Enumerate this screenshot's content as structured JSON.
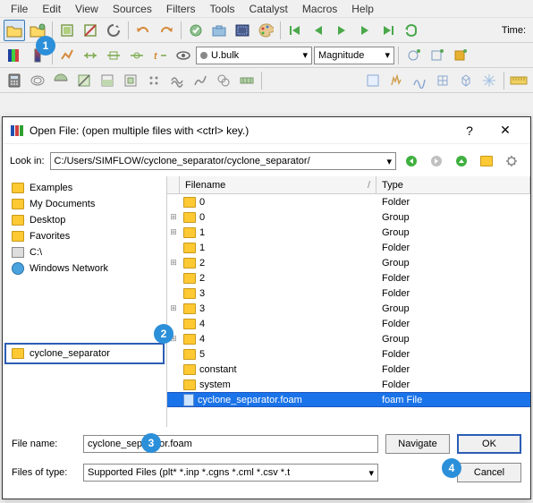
{
  "menu": {
    "items": [
      "File",
      "Edit",
      "View",
      "Sources",
      "Filters",
      "Tools",
      "Catalyst",
      "Macros",
      "Help"
    ]
  },
  "toolbar1": {
    "time_label": "Time:",
    "icons": [
      "open",
      "open-recent",
      "sep",
      "connect",
      "disconnect",
      "refresh",
      "sep",
      "undo",
      "redo",
      "sep",
      "apply",
      "camera",
      "frame",
      "palette",
      "sep",
      "first",
      "prev-step",
      "play",
      "next-step",
      "last",
      "loop"
    ]
  },
  "toolbar2": {
    "field_combo": "U.bulk",
    "repr_combo": "Magnitude"
  },
  "dialog": {
    "title": "Open File:  (open multiple files with <ctrl> key.)",
    "look_label": "Look in:",
    "look_path": "C:/Users/SIMFLOW/cyclone_separator/cyclone_separator/",
    "shortcuts": [
      {
        "icon": "folder",
        "label": "Examples"
      },
      {
        "icon": "folder",
        "label": "My Documents"
      },
      {
        "icon": "folder",
        "label": "Desktop"
      },
      {
        "icon": "folder",
        "label": "Favorites"
      },
      {
        "icon": "drive",
        "label": "C:\\"
      },
      {
        "icon": "globe",
        "label": "Windows Network"
      }
    ],
    "selected_shortcut": "cyclone_separator",
    "file_columns": {
      "name": "Filename",
      "type": "Type"
    },
    "files": [
      {
        "tree": "",
        "name": "0",
        "type": "Folder",
        "icon": "folder"
      },
      {
        "tree": "+",
        "name": "0",
        "type": "Group",
        "icon": "folder"
      },
      {
        "tree": "+",
        "name": "1",
        "type": "Group",
        "icon": "folder"
      },
      {
        "tree": "",
        "name": "1",
        "type": "Folder",
        "icon": "folder"
      },
      {
        "tree": "+",
        "name": "2",
        "type": "Group",
        "icon": "folder"
      },
      {
        "tree": "",
        "name": "2",
        "type": "Folder",
        "icon": "folder"
      },
      {
        "tree": "",
        "name": "3",
        "type": "Folder",
        "icon": "folder"
      },
      {
        "tree": "+",
        "name": "3",
        "type": "Group",
        "icon": "folder"
      },
      {
        "tree": "",
        "name": "4",
        "type": "Folder",
        "icon": "folder"
      },
      {
        "tree": "+",
        "name": "4",
        "type": "Group",
        "icon": "folder"
      },
      {
        "tree": "",
        "name": "5",
        "type": "Folder",
        "icon": "folder"
      },
      {
        "tree": "",
        "name": "constant",
        "type": "Folder",
        "icon": "folder"
      },
      {
        "tree": "",
        "name": "system",
        "type": "Folder",
        "icon": "folder"
      },
      {
        "tree": "",
        "name": "cyclone_separator.foam",
        "type": "foam File",
        "icon": "file",
        "selected": true
      }
    ],
    "filename_label": "File name:",
    "filename_value": "cyclone_separator.foam",
    "filetype_label": "Files of type:",
    "filetype_value": "Supported Files (plt* *.inp *.cgns *.cml *.csv *.t",
    "navigate_btn": "Navigate",
    "ok_btn": "OK",
    "cancel_btn": "Cancel"
  },
  "annotations": {
    "a1": "1",
    "a2": "2",
    "a3": "3",
    "a4": "4"
  },
  "colors": {
    "highlight_border": "#2c5db4",
    "selection_bg": "#1a73e8",
    "annot_bg": "#2c8fd9",
    "folder": "#ffc933"
  }
}
